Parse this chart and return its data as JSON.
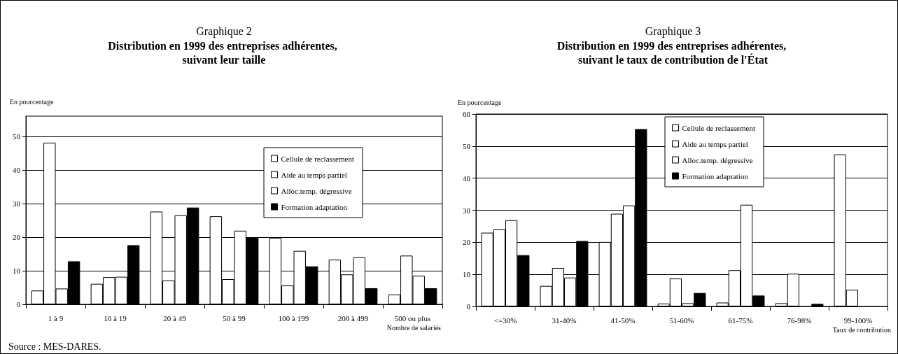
{
  "chart_data": [
    {
      "type": "bar",
      "title": "Graphique 2",
      "subtitle": "Distribution en 1999 des entreprises adhérentes, suivant leur taille",
      "ylabel": "En pourcentage",
      "xlabel": "Nombre de salariés",
      "annotations": [
        "Source : MES-DARES."
      ],
      "categories": [
        "1 à 9",
        "10 à 19",
        "20 à 49",
        "50 à 99",
        "100 à 199",
        "200 à 499",
        "500 ou plus"
      ],
      "series": [
        {
          "name": "Cellule de reclassement",
          "color": "#ffffff",
          "values": [
            4.1,
            6.1,
            27.6,
            26.2,
            19.8,
            13.3,
            2.9
          ]
        },
        {
          "name": "Aide au temps partiel",
          "color": "#ffffff",
          "values": [
            48.1,
            8.1,
            7.1,
            7.5,
            5.6,
            8.9,
            14.5
          ]
        },
        {
          "name": "Alloc.temp. dégressive",
          "color": "#ffffff",
          "values": [
            4.7,
            8.2,
            26.5,
            21.9,
            15.9,
            14,
            8.5
          ]
        },
        {
          "name": "Formation adaptation",
          "color": "#000000",
          "values": [
            12.8,
            17.6,
            28.8,
            19.8,
            11.3,
            4.8,
            4.8
          ]
        }
      ],
      "ylim": [
        0,
        56
      ],
      "yticks": [
        0,
        10,
        20,
        30,
        40,
        50
      ],
      "grid": "y",
      "legend": "top right"
    },
    {
      "type": "bar",
      "title": "Graphique 3",
      "subtitle": "Distribution en 1999 des entreprises adhérentes, suivant le taux de contribution de l'État",
      "ylabel": "En pourcentage",
      "xlabel": "Taux de contribution",
      "categories": [
        "<=30%",
        "31-40%",
        "41-50%",
        "51-60%",
        "61-75%",
        "76-98%",
        "99-100%"
      ],
      "series": [
        {
          "name": "Cellule de reclassement",
          "color": "#ffffff",
          "values": [
            23,
            6.4,
            20.1,
            0.9,
            1.2,
            1,
            47.4
          ]
        },
        {
          "name": "Aide au temps partiel",
          "color": "#ffffff",
          "values": [
            24,
            12,
            28.9,
            8.7,
            11.3,
            10.2,
            5.2
          ]
        },
        {
          "name": "Alloc.temp. dégressive",
          "color": "#ffffff",
          "values": [
            26.9,
            9,
            31.5,
            1,
            31.7,
            null,
            null
          ]
        },
        {
          "name": "Formation adaptation",
          "color": "#000000",
          "values": [
            16,
            20.4,
            55.3,
            4.2,
            3.4,
            0.8,
            null
          ]
        }
      ],
      "ylim": [
        0,
        60
      ],
      "yticks": [
        0,
        10,
        20,
        30,
        40,
        50,
        60
      ],
      "grid": "y",
      "legend": "top"
    }
  ]
}
